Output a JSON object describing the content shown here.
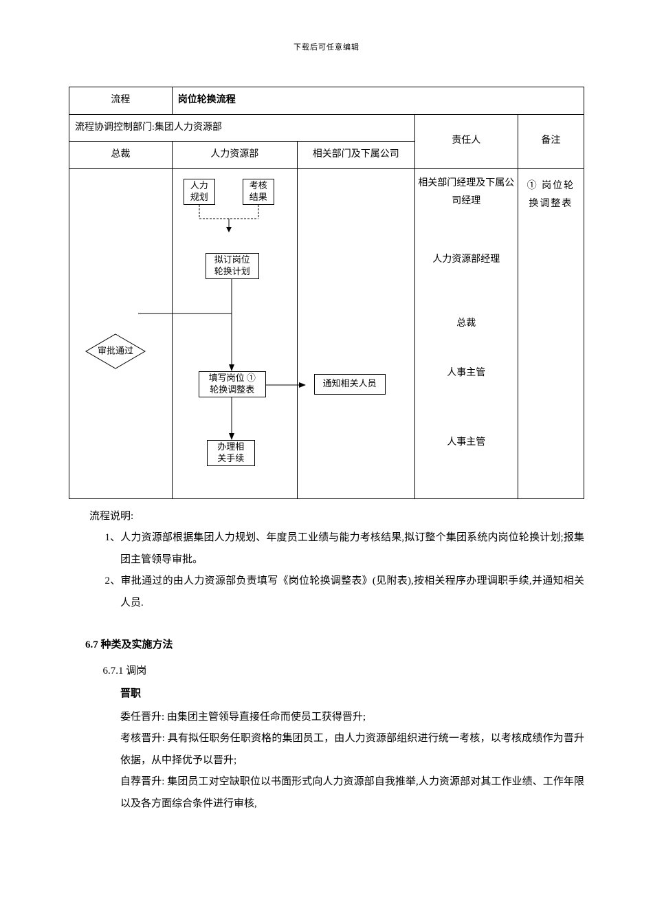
{
  "header_note": "下载后可任意编辑",
  "table": {
    "row1": {
      "label": "流程",
      "value": "岗位轮换流程"
    },
    "coord_dept": "流程协调控制部门:集团人力资源部",
    "headers": {
      "col_a": "总裁",
      "col_b": "人力资源部",
      "col_c": "相关部门及下属公司",
      "col_d": "责任人",
      "col_e": "备注"
    },
    "responsible": {
      "r1": "相关部门经理及下属公司经理",
      "r2": "人力资源部经理",
      "r3": "总裁",
      "r4": "人事主管",
      "r5": "人事主管"
    },
    "remark": "① 岗位轮换调整表"
  },
  "flow": {
    "box_hr_plan": "人力\n规划",
    "box_assess": "考核\n结果",
    "box_draft": "拟订岗位\n轮换计划",
    "diamond_approve": "审批通过",
    "box_fill": "填写岗位 ①\n轮换调整表",
    "box_notify": "通知相关人员",
    "box_process": "办理相\n关手续"
  },
  "description": {
    "title": "流程说明:",
    "item1": "1、人力资源部根据集团人力规划、年度员工业绩与能力考核结果,拟订整个集团系统内岗位轮换计划;报集团主管领导审批。",
    "item2": "2、审批通过的由人力资源部负责填写《岗位轮换调整表》(见附表),按相关程序办理调职手续,并通知相关人员."
  },
  "section": {
    "heading": "6.7 种类及实施方法",
    "subnum": "6.7.1 调岗",
    "subtitle": "晋职",
    "p1": "委任晋升: 由集团主管领导直接任命而使员工获得晋升;",
    "p2": "考核晋升: 具有拟任职务任职资格的集团员工，由人力资源部组织进行统一考核，以考核成绩作为晋升依据，从中择优予以晋升;",
    "p3": "自荐晋升: 集团员工对空缺职位以书面形式向人力资源部自我推举,人力资源部对其工作业绩、工作年限以及各方面综合条件进行审核,"
  },
  "colors": {
    "text": "#000000",
    "border": "#000000",
    "background": "#ffffff",
    "dashed": "#000000"
  }
}
